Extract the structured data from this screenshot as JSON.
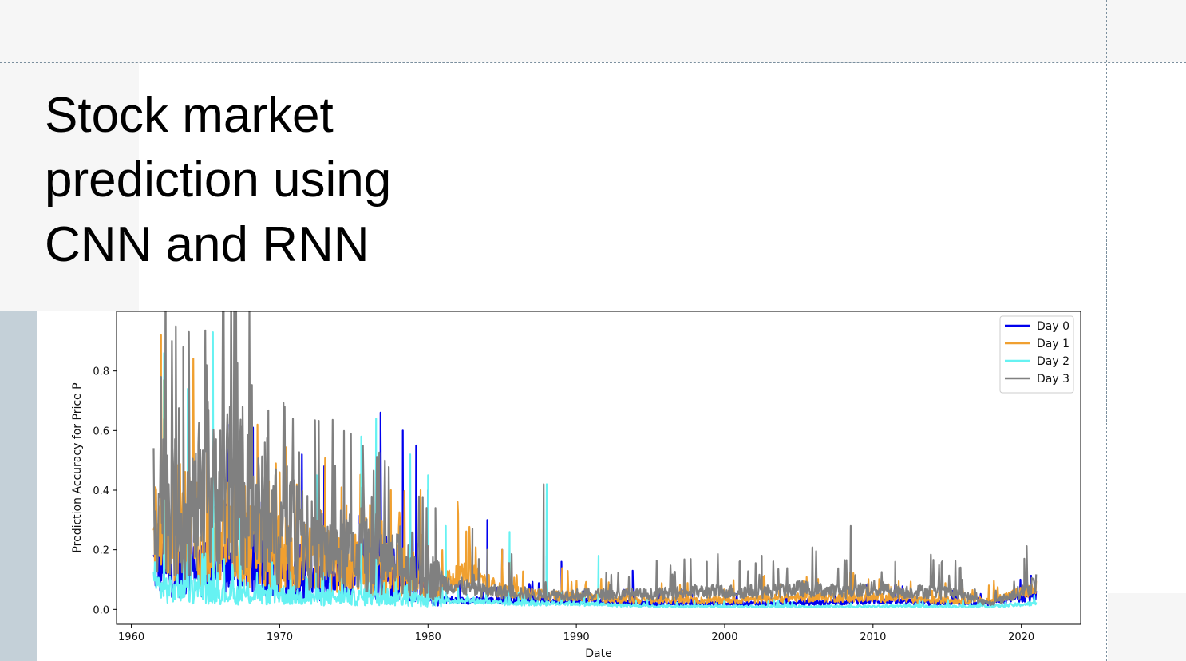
{
  "slide": {
    "title_lines": [
      "Stock market",
      "prediction using",
      "CNN and RNN"
    ]
  },
  "colors": {
    "Day 0": "#0000ee",
    "Day 1": "#f0a030",
    "Day 2": "#66f2f2",
    "Day 3": "#808080",
    "top_band": "#f6f6f6",
    "left_bar": "#c4d0d8"
  },
  "chart_data": {
    "type": "line",
    "title": "",
    "xlabel": "Date",
    "ylabel": "Prediction Accuracy for Price P",
    "xlim": [
      1959,
      2024
    ],
    "ylim": [
      -0.05,
      1.0
    ],
    "x_ticks": [
      1960,
      1970,
      1980,
      1990,
      2000,
      2010,
      2020
    ],
    "y_ticks": [
      0.0,
      0.2,
      0.4,
      0.6,
      0.8
    ],
    "grid": false,
    "legend": "top-right",
    "x_range": [
      1961.5,
      2021
    ],
    "series": [
      {
        "name": "Day 0",
        "color": "#0000ee",
        "x": [
          1961.5,
          1963,
          1965,
          1967,
          1969,
          1971,
          1973,
          1975,
          1977,
          1979,
          1980,
          1982,
          1985,
          1990,
          1995,
          2000,
          2005,
          2010,
          2015,
          2018,
          2021
        ],
        "y": [
          0.15,
          0.12,
          0.14,
          0.13,
          0.12,
          0.1,
          0.09,
          0.1,
          0.1,
          0.09,
          0.04,
          0.03,
          0.03,
          0.03,
          0.02,
          0.02,
          0.02,
          0.03,
          0.02,
          0.02,
          0.05
        ],
        "spikes": [
          [
            1966.5,
            0.62
          ],
          [
            1968.2,
            0.61
          ],
          [
            1971.5,
            0.52
          ],
          [
            1973,
            0.48
          ],
          [
            1976.8,
            0.66
          ],
          [
            1978.3,
            0.6
          ],
          [
            1979.2,
            0.55
          ],
          [
            1980,
            0.4
          ],
          [
            1984,
            0.3
          ],
          [
            1985,
            0.2
          ],
          [
            1988,
            0.18
          ],
          [
            1989,
            0.16
          ],
          [
            1993.8,
            0.13
          ]
        ]
      },
      {
        "name": "Day 1",
        "color": "#f0a030",
        "x": [
          1961.5,
          1962,
          1963,
          1964,
          1965,
          1967,
          1969,
          1971,
          1973,
          1975,
          1977,
          1979,
          1980,
          1983,
          1985,
          1990,
          1995,
          2000,
          2005,
          2010,
          2015,
          2018,
          2021
        ],
        "y": [
          0.22,
          0.35,
          0.3,
          0.28,
          0.25,
          0.22,
          0.2,
          0.18,
          0.16,
          0.15,
          0.14,
          0.12,
          0.08,
          0.12,
          0.06,
          0.04,
          0.03,
          0.03,
          0.04,
          0.04,
          0.03,
          0.03,
          0.07
        ],
        "spikes": [
          [
            1962,
            0.92
          ],
          [
            1968.5,
            0.62
          ],
          [
            1970,
            0.46
          ],
          [
            1974.5,
            0.35
          ],
          [
            1977.5,
            0.4
          ],
          [
            1979.5,
            0.4
          ],
          [
            1982,
            0.36
          ],
          [
            1983,
            0.15
          ],
          [
            1985,
            0.2
          ],
          [
            1986,
            0.1
          ]
        ]
      },
      {
        "name": "Day 2",
        "color": "#66f2f2",
        "x": [
          1961.5,
          1963,
          1965,
          1967,
          1970,
          1973,
          1975,
          1977,
          1980,
          1983,
          1985,
          1990,
          1995,
          2000,
          2005,
          2010,
          2015,
          2018,
          2021
        ],
        "y": [
          0.08,
          0.06,
          0.06,
          0.05,
          0.05,
          0.04,
          0.04,
          0.04,
          0.03,
          0.03,
          0.02,
          0.02,
          0.01,
          0.01,
          0.01,
          0.01,
          0.01,
          0.01,
          0.02
        ],
        "spikes": [
          [
            1962.2,
            0.86
          ],
          [
            1963.8,
            0.74
          ],
          [
            1965.5,
            0.93
          ],
          [
            1967.3,
            0.53
          ],
          [
            1972.5,
            0.45
          ],
          [
            1975.5,
            0.58
          ],
          [
            1976.5,
            0.64
          ],
          [
            1978.8,
            0.52
          ],
          [
            1980,
            0.45
          ],
          [
            1981.2,
            0.28
          ],
          [
            1985.5,
            0.26
          ],
          [
            1988,
            0.42
          ],
          [
            1991.5,
            0.18
          ]
        ]
      },
      {
        "name": "Day 3",
        "color": "#808080",
        "x": [
          1961.5,
          1962,
          1963,
          1964,
          1965,
          1966,
          1967,
          1968,
          1969,
          1970,
          1971,
          1972,
          1973,
          1974,
          1975,
          1976,
          1977,
          1978,
          1979,
          1980,
          1981,
          1982,
          1983,
          1984,
          1985,
          1986,
          1987,
          1988,
          1990,
          1992,
          1995,
          1998,
          2000,
          2003,
          2005,
          2008,
          2010,
          2012,
          2014,
          2016,
          2017,
          2018,
          2019,
          2020,
          2021
        ],
        "y": [
          0.36,
          0.42,
          0.34,
          0.33,
          0.32,
          0.41,
          0.4,
          0.34,
          0.3,
          0.26,
          0.22,
          0.22,
          0.2,
          0.2,
          0.19,
          0.18,
          0.16,
          0.15,
          0.14,
          0.12,
          0.09,
          0.08,
          0.07,
          0.06,
          0.06,
          0.06,
          0.05,
          0.05,
          0.05,
          0.05,
          0.05,
          0.06,
          0.06,
          0.06,
          0.07,
          0.06,
          0.07,
          0.06,
          0.06,
          0.05,
          0.03,
          0.02,
          0.04,
          0.06,
          0.09
        ],
        "spikes": [
          [
            1962,
            0.78
          ],
          [
            1963,
            0.95
          ],
          [
            1963.5,
            0.88
          ],
          [
            1965.2,
            0.67
          ],
          [
            1966,
            0.6
          ],
          [
            1967.5,
            0.68
          ],
          [
            1969,
            0.56
          ],
          [
            1970.5,
            0.48
          ],
          [
            1974.5,
            0.3
          ],
          [
            1975.5,
            0.34
          ],
          [
            1976.5,
            0.32
          ],
          [
            1980.5,
            0.34
          ],
          [
            1983,
            0.27
          ],
          [
            1984,
            0.2
          ],
          [
            1987.8,
            0.42
          ],
          [
            1998.8,
            0.16
          ],
          [
            2001,
            0.16
          ],
          [
            2002.5,
            0.18
          ],
          [
            2008.5,
            0.28
          ],
          [
            2011.5,
            0.16
          ],
          [
            2015.8,
            0.14
          ],
          [
            2020.2,
            0.17
          ]
        ]
      }
    ]
  }
}
